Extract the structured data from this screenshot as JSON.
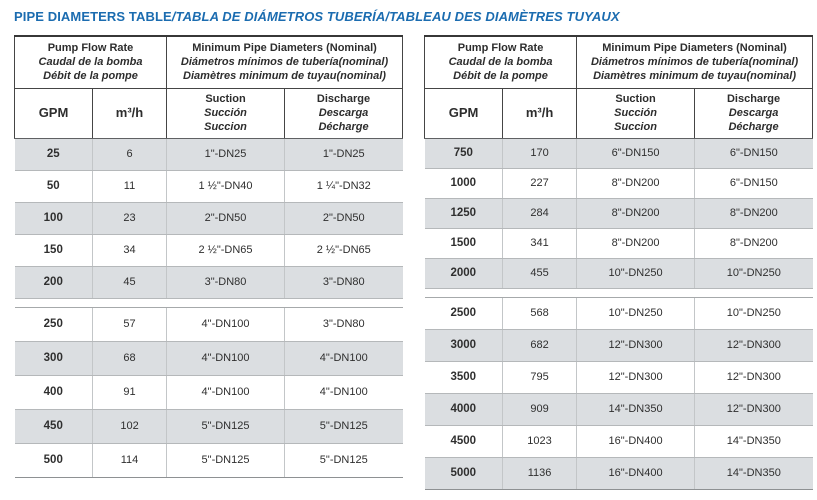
{
  "title": {
    "main": "PIPE DIAMETERS TABLE",
    "rest": "/TABLA DE DIÁMETROS TUBERÍA/TABLEAU DES DIAMÈTRES TUYAUX"
  },
  "colors": {
    "title_blue": "#1b6cb0",
    "row_shade": "#dbdee1"
  },
  "header": {
    "flow": {
      "l1": "Pump Flow Rate",
      "l2": "Caudal de la bomba",
      "l3": "Débit de la pompe"
    },
    "diameters": {
      "l1": "Minimum Pipe Diameters (Nominal)",
      "l2": "Diámetros mínimos de tubería(nominal)",
      "l3": "Diamètres minimum de tuyau(nominal)"
    },
    "gpm": "GPM",
    "m3h": "m³/h",
    "suction": {
      "l1": "Suction",
      "l2": "Succión",
      "l3": "Succion"
    },
    "discharge": {
      "l1": "Discharge",
      "l2": "Descarga",
      "l3": "Décharge"
    }
  },
  "tables": [
    {
      "name": "low-flow",
      "groups": [
        {
          "rows": [
            [
              "25",
              "6",
              "1\"-DN25",
              "1\"-DN25"
            ],
            [
              "50",
              "11",
              "1 ½\"-DN40",
              "1 ¼\"-DN32"
            ],
            [
              "100",
              "23",
              "2\"-DN50",
              "2\"-DN50"
            ],
            [
              "150",
              "34",
              "2 ½\"-DN65",
              "2 ½\"-DN65"
            ],
            [
              "200",
              "45",
              "3\"-DN80",
              "3\"-DN80"
            ]
          ]
        },
        {
          "rows": [
            [
              "250",
              "57",
              "4\"-DN100",
              "3\"-DN80"
            ],
            [
              "300",
              "68",
              "4\"-DN100",
              "4\"-DN100"
            ],
            [
              "400",
              "91",
              "4\"-DN100",
              "4\"-DN100"
            ],
            [
              "450",
              "102",
              "5\"-DN125",
              "5\"-DN125"
            ],
            [
              "500",
              "114",
              "5\"-DN125",
              "5\"-DN125"
            ]
          ]
        }
      ]
    },
    {
      "name": "high-flow",
      "groups": [
        {
          "rows": [
            [
              "750",
              "170",
              "6\"-DN150",
              "6\"-DN150"
            ],
            [
              "1000",
              "227",
              "8\"-DN200",
              "6\"-DN150"
            ],
            [
              "1250",
              "284",
              "8\"-DN200",
              "8\"-DN200"
            ],
            [
              "1500",
              "341",
              "8\"-DN200",
              "8\"-DN200"
            ],
            [
              "2000",
              "455",
              "10\"-DN250",
              "10\"-DN250"
            ]
          ]
        },
        {
          "rows": [
            [
              "2500",
              "568",
              "10\"-DN250",
              "10\"-DN250"
            ],
            [
              "3000",
              "682",
              "12\"-DN300",
              "12\"-DN300"
            ],
            [
              "3500",
              "795",
              "12\"-DN300",
              "12\"-DN300"
            ],
            [
              "4000",
              "909",
              "14\"-DN350",
              "12\"-DN300"
            ],
            [
              "4500",
              "1023",
              "16\"-DN400",
              "14\"-DN350"
            ],
            [
              "5000",
              "1136",
              "16\"-DN400",
              "14\"-DN350"
            ]
          ]
        }
      ]
    }
  ]
}
